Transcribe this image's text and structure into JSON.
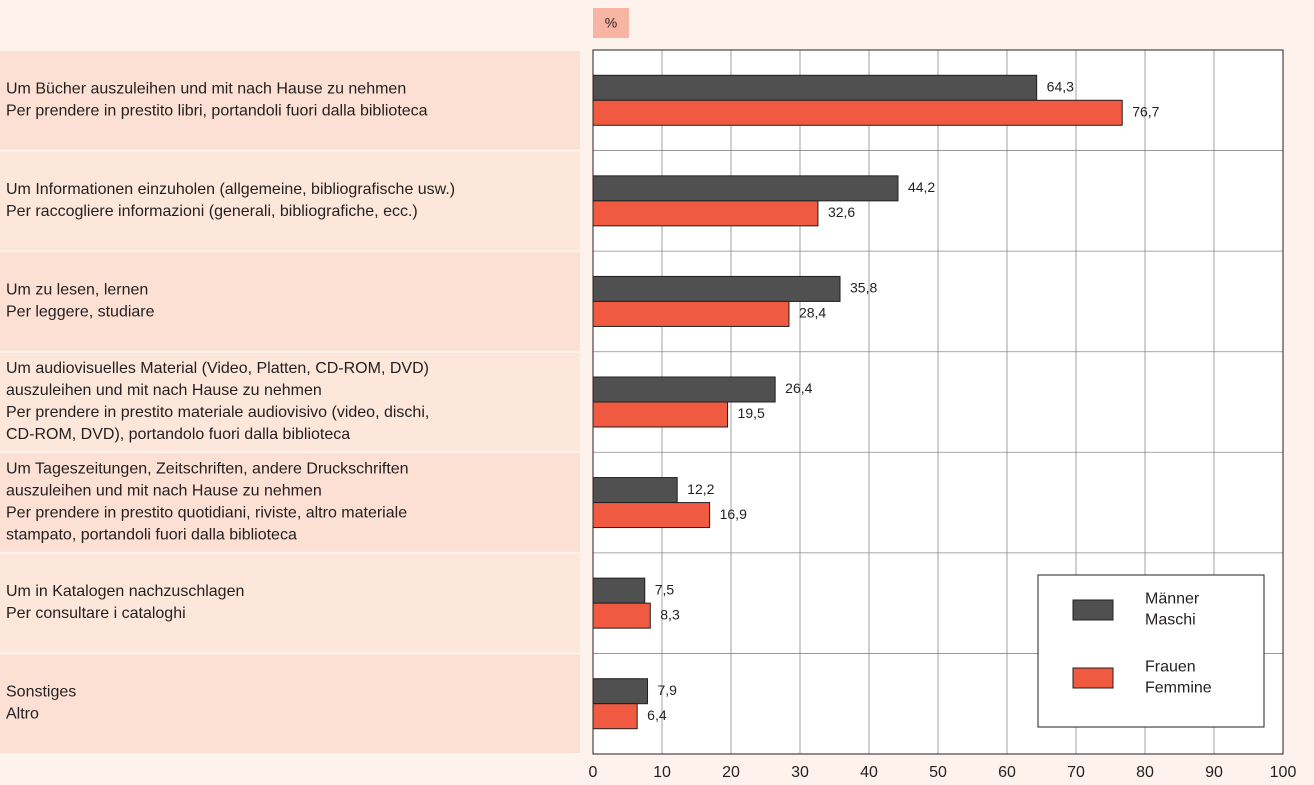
{
  "chart_data": {
    "type": "bar",
    "orientation": "horizontal",
    "xlabel": "%",
    "categories": [
      [
        "Um Bücher auszuleihen und mit nach Hause zu nehmen",
        "Per prendere in prestito libri, portandoli fuori dalla biblioteca"
      ],
      [
        "Um Informationen einzuholen (allgemeine, bibliografische usw.)",
        "Per raccogliere informazioni (generali, bibliografiche, ecc.)"
      ],
      [
        "Um zu lesen, lernen",
        "Per leggere, studiare"
      ],
      [
        "Um audiovisuelles Material (Video, Platten, CD-ROM, DVD)",
        "auszuleihen und mit nach Hause zu nehmen",
        "Per prendere in prestito materiale audiovisivo (video, dischi,",
        "CD-ROM, DVD), portandolo fuori dalla biblioteca"
      ],
      [
        "Um Tageszeitungen, Zeitschriften, andere Druckschriften",
        "auszuleihen und mit nach Hause zu nehmen",
        "Per prendere in prestito quotidiani, riviste, altro materiale",
        "stampato, portandoli fuori dalla biblioteca"
      ],
      [
        "Um in Katalogen nachzuschlagen",
        "Per consultare i cataloghi"
      ],
      [
        "Sonstiges",
        "Altro"
      ]
    ],
    "series": [
      {
        "name": [
          "Männer",
          "Maschi"
        ],
        "color": "#505050",
        "values": [
          64.3,
          44.2,
          35.8,
          26.4,
          12.2,
          7.5,
          7.9
        ],
        "value_labels": [
          "64,3",
          "44,2",
          "35,8",
          "26,4",
          "12,2",
          "7,5",
          "7,9"
        ]
      },
      {
        "name": [
          "Frauen",
          "Femmine"
        ],
        "color": "#f05a40",
        "values": [
          76.7,
          32.6,
          28.4,
          19.5,
          16.9,
          8.3,
          6.4
        ],
        "value_labels": [
          "76,7",
          "32,6",
          "28,4",
          "19,5",
          "16,9",
          "8,3",
          "6,4"
        ]
      }
    ],
    "xlim": [
      0,
      100
    ],
    "xticks": [
      0,
      10,
      20,
      30,
      40,
      50,
      60,
      70,
      80,
      90,
      100
    ],
    "grid": true,
    "legend": "lower right"
  }
}
